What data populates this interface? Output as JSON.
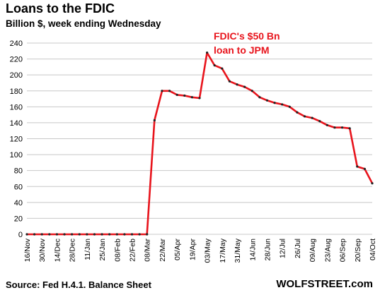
{
  "header": {
    "title": "Loans to the FDIC",
    "subtitle": "Billion $, week ending Wednesday"
  },
  "footer": {
    "source": "Source: Fed H.4.1. Balance Sheet",
    "brand": "WOLFSTREET.com"
  },
  "colors": {
    "line": "#e8141c",
    "marker": "#222222",
    "grid": "#c8c8c8",
    "annotation": "#e8141c"
  },
  "chart_data": {
    "type": "line",
    "title": "Loans to the FDIC",
    "subtitle": "Billion $, week ending Wednesday",
    "xlabel": "",
    "ylabel": "",
    "ylim": [
      0,
      240
    ],
    "yticks": [
      0,
      20,
      40,
      60,
      80,
      100,
      120,
      140,
      160,
      180,
      200,
      220,
      240
    ],
    "grid": "horizontal",
    "x_tick_labels": [
      "16/Nov",
      "30/Nov",
      "14/Dec",
      "28/Dec",
      "11/Jan",
      "25/Jan",
      "08/Feb",
      "22/Feb",
      "08/Mar",
      "22/Mar",
      "05/Apr",
      "19/Apr",
      "03/May",
      "17/May",
      "31/May",
      "14/Jun",
      "28/Jun",
      "12/Jul",
      "26/Jul",
      "09/Aug",
      "23/Aug",
      "06/Sep",
      "20/Sep",
      "04/Oct"
    ],
    "x": [
      "16/Nov",
      "23/Nov",
      "30/Nov",
      "07/Dec",
      "14/Dec",
      "21/Dec",
      "28/Dec",
      "04/Jan",
      "11/Jan",
      "18/Jan",
      "25/Jan",
      "01/Feb",
      "08/Feb",
      "15/Feb",
      "22/Feb",
      "01/Mar",
      "08/Mar",
      "15/Mar",
      "22/Mar",
      "29/Mar",
      "05/Apr",
      "12/Apr",
      "19/Apr",
      "26/Apr",
      "03/May",
      "10/May",
      "17/May",
      "24/May",
      "31/May",
      "07/Jun",
      "14/Jun",
      "21/Jun",
      "28/Jun",
      "05/Jul",
      "12/Jul",
      "19/Jul",
      "26/Jul",
      "02/Aug",
      "09/Aug",
      "16/Aug",
      "23/Aug",
      "30/Aug",
      "06/Sep",
      "13/Sep",
      "20/Sep",
      "27/Sep",
      "04/Oct"
    ],
    "series": [
      {
        "values": [
          0,
          0,
          0,
          0,
          0,
          0,
          0,
          0,
          0,
          0,
          0,
          0,
          0,
          0,
          0,
          0,
          0,
          143,
          180,
          180,
          175,
          174,
          172,
          171,
          228,
          212,
          208,
          192,
          188,
          185,
          180,
          172,
          168,
          165,
          163,
          160,
          153,
          148,
          146,
          142,
          137,
          134,
          134,
          133,
          85,
          82,
          64
        ]
      }
    ],
    "annotations": [
      {
        "text_line1": "FDIC's $50 Bn",
        "text_line2": "loan to JPM",
        "x": "03/May",
        "y": 228
      }
    ]
  }
}
